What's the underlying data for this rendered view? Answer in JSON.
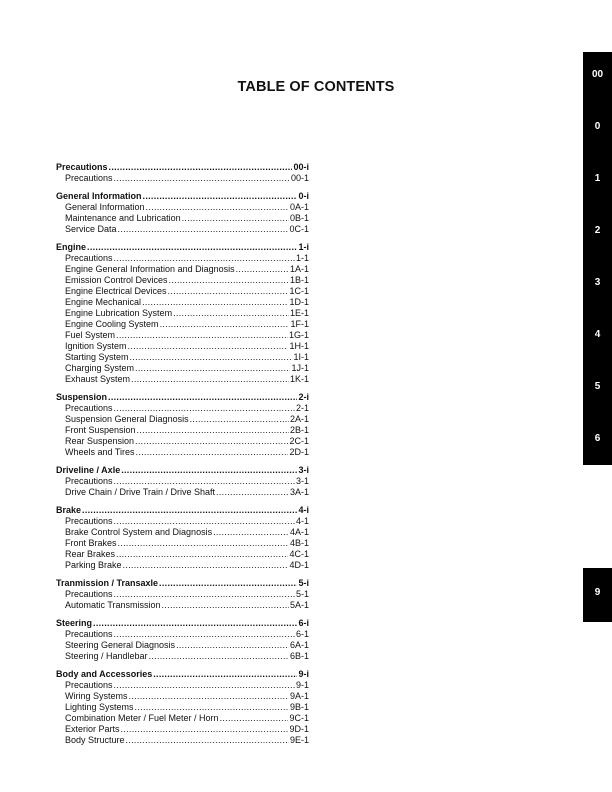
{
  "title": "TABLE OF CONTENTS",
  "sections": [
    {
      "title": "Precautions",
      "page": "00-i",
      "items": [
        {
          "name": "Precautions",
          "page": "00-1"
        }
      ]
    },
    {
      "title": "General Information",
      "page": "0-i",
      "items": [
        {
          "name": "General Information",
          "page": "0A-1"
        },
        {
          "name": "Maintenance and Lubrication",
          "page": "0B-1"
        },
        {
          "name": "Service Data",
          "page": "0C-1"
        }
      ]
    },
    {
      "title": "Engine",
      "page": "1-i",
      "items": [
        {
          "name": "Precautions",
          "page": "1-1"
        },
        {
          "name": "Engine General Information and Diagnosis",
          "page": "1A-1"
        },
        {
          "name": "Emission Control Devices",
          "page": "1B-1"
        },
        {
          "name": "Engine Electrical Devices",
          "page": "1C-1"
        },
        {
          "name": "Engine Mechanical",
          "page": "1D-1"
        },
        {
          "name": "Engine Lubrication System",
          "page": "1E-1"
        },
        {
          "name": "Engine Cooling System",
          "page": "1F-1"
        },
        {
          "name": "Fuel System",
          "page": "1G-1"
        },
        {
          "name": "Ignition System",
          "page": "1H-1"
        },
        {
          "name": "Starting System",
          "page": "1I-1"
        },
        {
          "name": "Charging System",
          "page": "1J-1"
        },
        {
          "name": "Exhaust System",
          "page": "1K-1"
        }
      ]
    },
    {
      "title": "Suspension",
      "page": "2-i",
      "items": [
        {
          "name": "Precautions",
          "page": "2-1"
        },
        {
          "name": "Suspension General Diagnosis",
          "page": "2A-1"
        },
        {
          "name": "Front Suspension",
          "page": "2B-1"
        },
        {
          "name": "Rear Suspension",
          "page": "2C-1"
        },
        {
          "name": "Wheels and Tires",
          "page": "2D-1"
        }
      ]
    },
    {
      "title": "Driveline / Axle",
      "page": "3-i",
      "items": [
        {
          "name": "Precautions",
          "page": "3-1"
        },
        {
          "name": "Drive Chain / Drive Train / Drive Shaft",
          "page": "3A-1"
        }
      ]
    },
    {
      "title": "Brake",
      "page": "4-i",
      "items": [
        {
          "name": "Precautions",
          "page": "4-1"
        },
        {
          "name": "Brake Control System and Diagnosis",
          "page": "4A-1"
        },
        {
          "name": "Front Brakes",
          "page": "4B-1"
        },
        {
          "name": "Rear Brakes",
          "page": "4C-1"
        },
        {
          "name": "Parking Brake",
          "page": "4D-1"
        }
      ]
    },
    {
      "title": "Tranmission / Transaxle",
      "page": "5-i",
      "items": [
        {
          "name": "Precautions",
          "page": "5-1"
        },
        {
          "name": "Automatic Transmission",
          "page": "5A-1"
        }
      ]
    },
    {
      "title": "Steering",
      "page": "6-i",
      "items": [
        {
          "name": "Precautions",
          "page": "6-1"
        },
        {
          "name": "Steering General Diagnosis",
          "page": "6A-1"
        },
        {
          "name": "Steering / Handlebar",
          "page": "6B-1"
        }
      ]
    },
    {
      "title": "Body and Accessories",
      "page": "9-i",
      "items": [
        {
          "name": "Precautions",
          "page": "9-1"
        },
        {
          "name": "Wiring Systems",
          "page": "9A-1"
        },
        {
          "name": "Lighting Systems",
          "page": "9B-1"
        },
        {
          "name": "Combination Meter / Fuel Meter / Horn",
          "page": "9C-1"
        },
        {
          "name": "Exterior Parts",
          "page": "9D-1"
        },
        {
          "name": "Body Structure",
          "page": "9E-1"
        }
      ]
    }
  ],
  "side_tabs": [
    "00",
    "0",
    "1",
    "2",
    "3",
    "4",
    "5",
    "6"
  ],
  "side_tabs_lower": [
    "9"
  ],
  "colors": {
    "tab_bg": "#000000",
    "tab_text": "#ffffff"
  }
}
